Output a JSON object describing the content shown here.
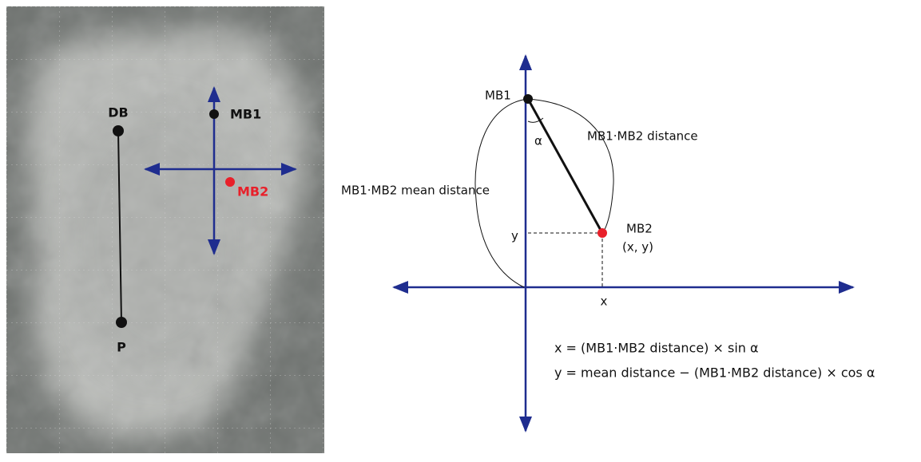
{
  "left_panel": {
    "labels": {
      "db": "DB",
      "p": "P",
      "mb1": "MB1",
      "mb2": "MB2"
    }
  },
  "right_panel": {
    "mb1": "MB1",
    "distance": "MB1·MB2 distance",
    "angle": "α",
    "mean_distance": "MB1·MB2 mean distance",
    "mb2": "MB2",
    "mb2_coords": "(x, y)",
    "y_label": "y",
    "x_label": "x",
    "formulas": [
      "x = (MB1·MB2 distance) × sin α",
      "y = mean distance − (MB1·MB2 distance) × cos α"
    ]
  }
}
